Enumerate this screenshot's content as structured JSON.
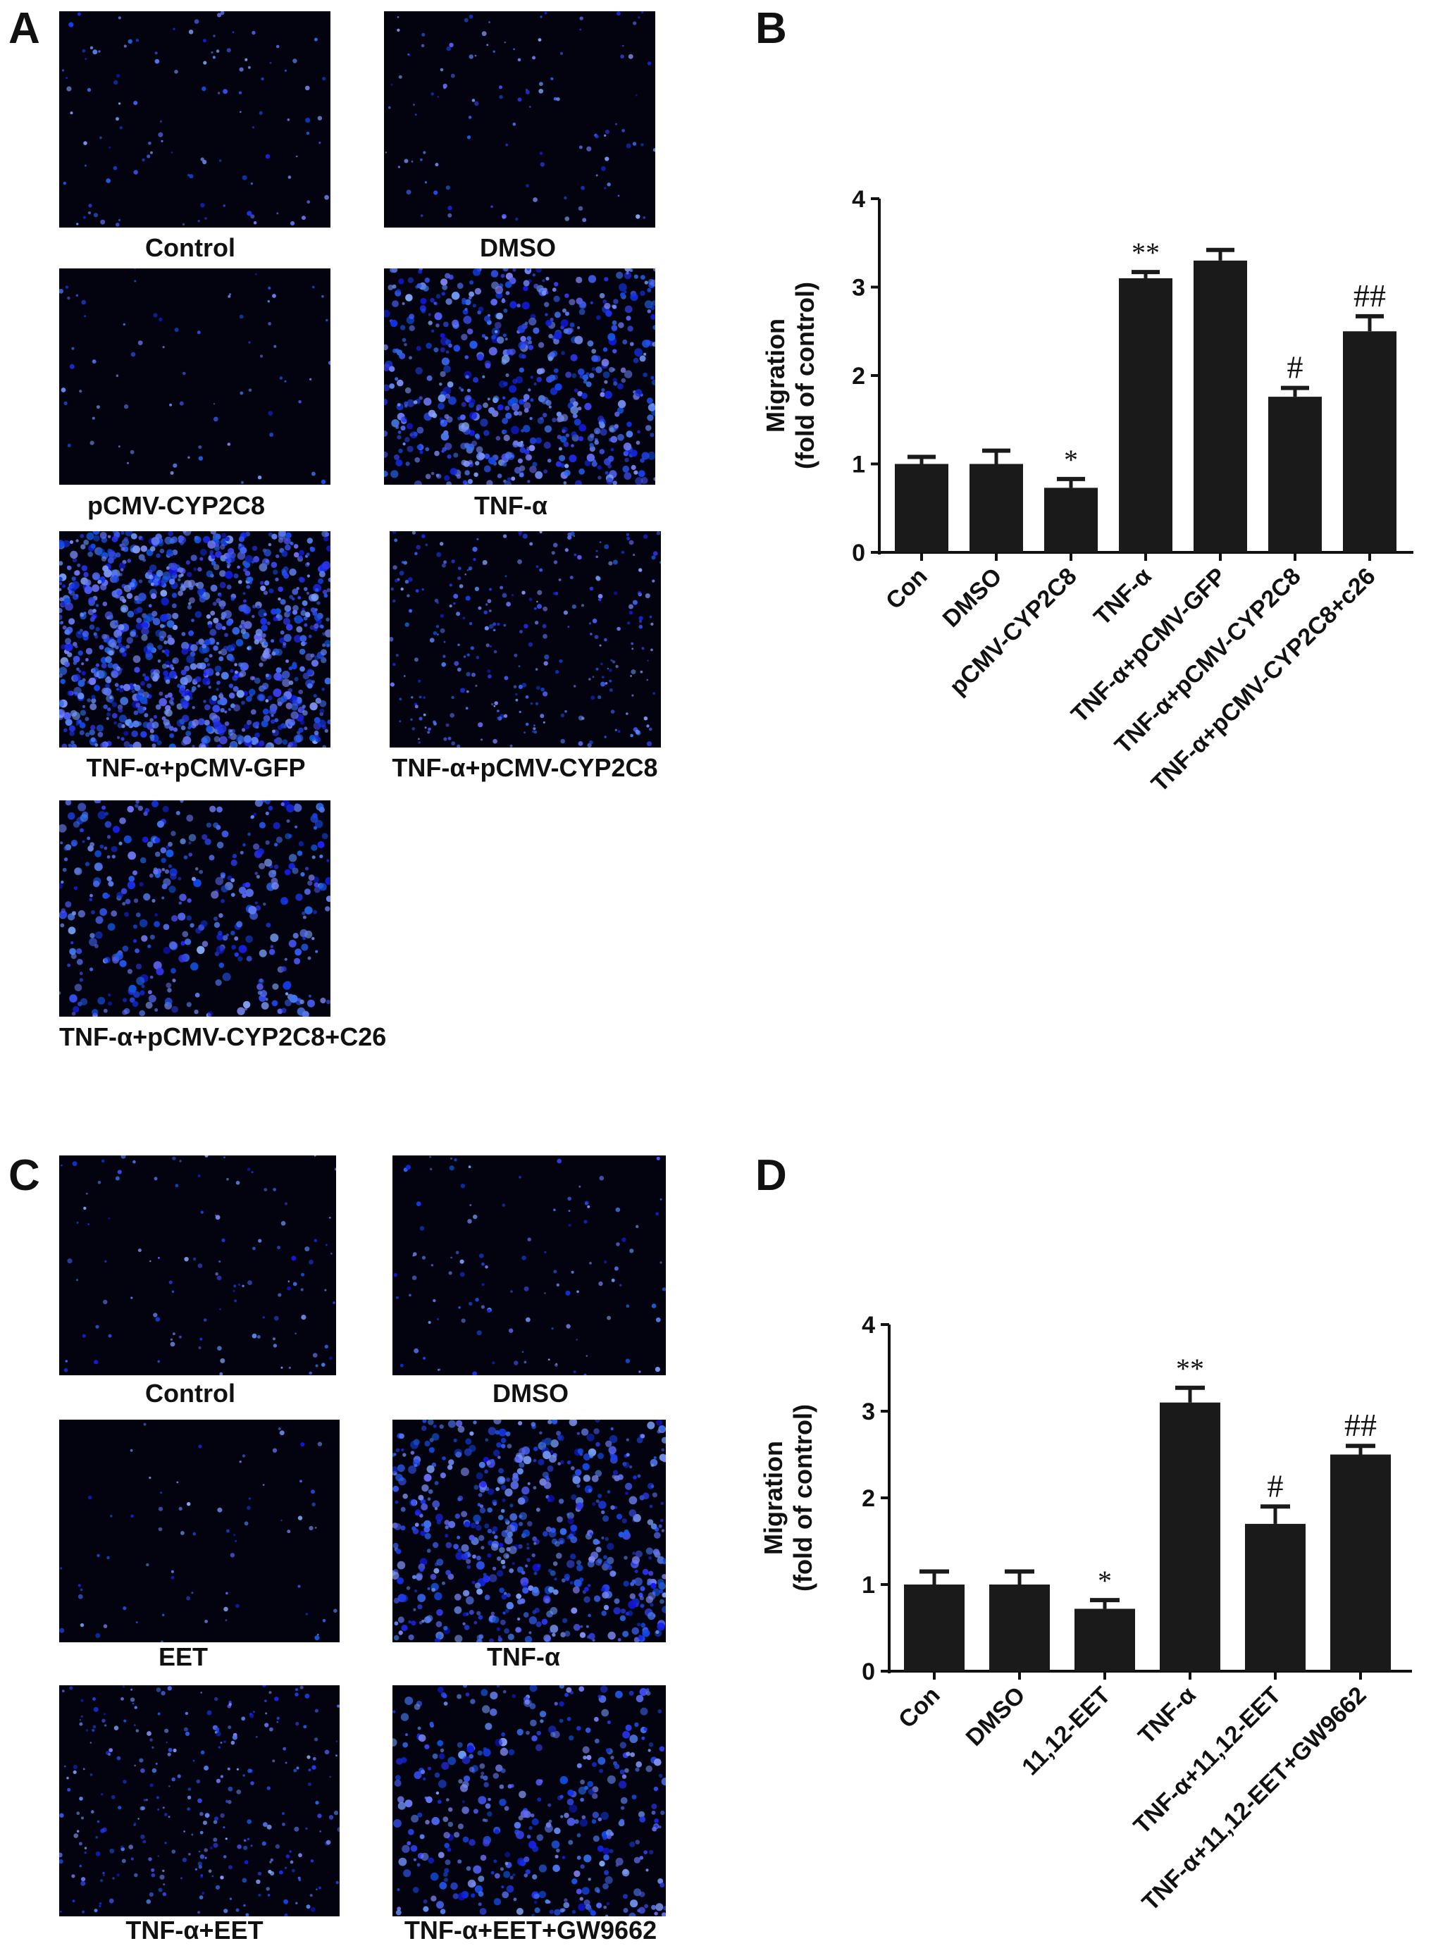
{
  "panels": {
    "a": {
      "letter": "A"
    },
    "b": {
      "letter": "B"
    },
    "c": {
      "letter": "C"
    },
    "d": {
      "letter": "D"
    }
  },
  "images_a": [
    {
      "caption": "Control",
      "density": "low"
    },
    {
      "caption": "DMSO",
      "density": "low"
    },
    {
      "caption": "pCMV-CYP2C8",
      "density": "very-low"
    },
    {
      "caption": "TNF-α",
      "density": "high"
    },
    {
      "caption": "TNF-α+pCMV-GFP",
      "density": "very-high"
    },
    {
      "caption": "TNF-α+pCMV-CYP2C8",
      "density": "medium"
    },
    {
      "caption": "TNF-α+pCMV-CYP2C8+C26",
      "density": "medium-high"
    }
  ],
  "images_c": [
    {
      "caption": "Control",
      "density": "low"
    },
    {
      "caption": "DMSO",
      "density": "low"
    },
    {
      "caption": "EET",
      "density": "very-low"
    },
    {
      "caption": "TNF-α",
      "density": "high"
    },
    {
      "caption": "TNF-α+EET",
      "density": "medium"
    },
    {
      "caption": "TNF-α+EET+GW9662",
      "density": "medium-high"
    }
  ],
  "chart_data": [
    {
      "type": "bar",
      "panel": "B",
      "ylabel_line1": "Migration",
      "ylabel_line2": "(fold of control)",
      "ylim": [
        0,
        4
      ],
      "yticks": [
        "0",
        "1",
        "2",
        "3",
        "4"
      ],
      "categories": [
        "Con",
        "DMSO",
        "pCMV-CYP2C8",
        "TNF-α",
        "TNF-α+pCMV-GFP",
        "TNF-α+pCMV-CYP2C8",
        "TNF-α+pCMV-CYP2C8+c26"
      ],
      "values": [
        1.0,
        1.0,
        0.73,
        3.1,
        3.3,
        1.76,
        2.5
      ],
      "errors": [
        0.08,
        0.15,
        0.1,
        0.07,
        0.12,
        0.1,
        0.17
      ],
      "annotations": [
        "",
        "",
        "*",
        "**",
        "",
        "#",
        "##"
      ],
      "bar_color": "#1a1a1a"
    },
    {
      "type": "bar",
      "panel": "D",
      "ylabel_line1": "Migration",
      "ylabel_line2": "(fold of control)",
      "ylim": [
        0,
        4
      ],
      "yticks": [
        "0",
        "1",
        "2",
        "3",
        "4"
      ],
      "categories": [
        "Con",
        "DMSO",
        "11,12-EET",
        "TNF-α",
        "TNF-α+11,12-EET",
        "TNF-α+11,12-EET+GW9662"
      ],
      "values": [
        1.0,
        1.0,
        0.72,
        3.1,
        1.7,
        2.5
      ],
      "errors": [
        0.15,
        0.15,
        0.1,
        0.17,
        0.2,
        0.1
      ],
      "annotations": [
        "",
        "",
        "*",
        "**",
        "#",
        "##"
      ],
      "bar_color": "#1a1a1a"
    }
  ]
}
